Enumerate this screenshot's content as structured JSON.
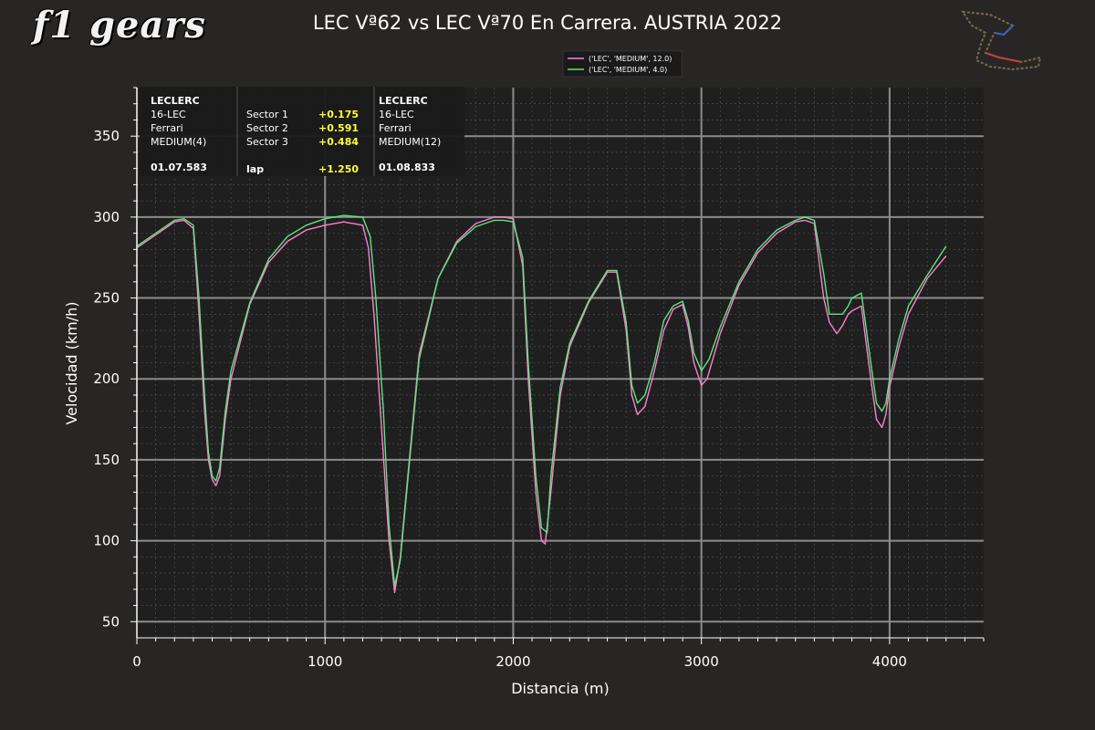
{
  "logo_text": "f1 gears",
  "chart_data": {
    "type": "line",
    "title": "LEC Vª62 vs LEC Vª70 En Carrera. AUSTRIA 2022",
    "xlabel": "Distancia (m)",
    "ylabel": "Velocidad (km/h)",
    "xlim": [
      0,
      4500
    ],
    "ylim": [
      40,
      380
    ],
    "xticks": [
      0,
      1000,
      2000,
      3000,
      4000
    ],
    "yticks": [
      50,
      100,
      150,
      200,
      250,
      300,
      350
    ],
    "grid": true,
    "legend_position": "top-center",
    "series": [
      {
        "name": "('LEC', 'MEDIUM', 12.0)",
        "color": "#ff7fd0",
        "x": [
          0,
          100,
          200,
          250,
          300,
          330,
          360,
          380,
          400,
          420,
          440,
          470,
          500,
          600,
          700,
          800,
          900,
          1000,
          1100,
          1200,
          1230,
          1260,
          1300,
          1340,
          1370,
          1400,
          1500,
          1600,
          1700,
          1800,
          1900,
          1950,
          2000,
          2050,
          2080,
          2120,
          2150,
          2170,
          2200,
          2250,
          2300,
          2400,
          2500,
          2550,
          2600,
          2630,
          2660,
          2700,
          2750,
          2800,
          2850,
          2900,
          2930,
          2960,
          3000,
          3030,
          3100,
          3200,
          3300,
          3400,
          3500,
          3550,
          3600,
          3650,
          3680,
          3720,
          3750,
          3780,
          3800,
          3850,
          3900,
          3930,
          3960,
          3980,
          4000,
          4050,
          4100,
          4200,
          4300
        ],
        "values": [
          281,
          289,
          297,
          298,
          293,
          240,
          180,
          150,
          138,
          134,
          140,
          175,
          200,
          246,
          272,
          285,
          292,
          295,
          297,
          295,
          281,
          240,
          170,
          100,
          68,
          90,
          215,
          262,
          285,
          296,
          300,
          300,
          299,
          270,
          200,
          130,
          100,
          98,
          130,
          190,
          220,
          247,
          266,
          266,
          230,
          190,
          178,
          183,
          205,
          230,
          243,
          246,
          232,
          210,
          196,
          200,
          228,
          258,
          278,
          290,
          297,
          298,
          296,
          250,
          235,
          228,
          233,
          240,
          242,
          245,
          200,
          175,
          170,
          178,
          195,
          220,
          240,
          262,
          276
        ]
      },
      {
        "name": "('LEC', 'MEDIUM', 4.0)",
        "color": "#5ce67e",
        "x": [
          0,
          100,
          200,
          250,
          300,
          330,
          360,
          380,
          400,
          420,
          440,
          470,
          500,
          600,
          700,
          800,
          900,
          1000,
          1100,
          1200,
          1240,
          1270,
          1310,
          1340,
          1370,
          1400,
          1500,
          1600,
          1700,
          1800,
          1900,
          1950,
          2000,
          2050,
          2080,
          2120,
          2150,
          2180,
          2200,
          2250,
          2300,
          2400,
          2500,
          2550,
          2600,
          2630,
          2660,
          2700,
          2750,
          2800,
          2850,
          2900,
          2930,
          2960,
          3000,
          3040,
          3100,
          3200,
          3300,
          3400,
          3500,
          3550,
          3600,
          3650,
          3680,
          3720,
          3750,
          3780,
          3800,
          3850,
          3900,
          3930,
          3960,
          3980,
          4000,
          4050,
          4100,
          4200,
          4300
        ],
        "values": [
          282,
          290,
          298,
          299,
          295,
          250,
          190,
          155,
          140,
          137,
          145,
          180,
          205,
          247,
          274,
          288,
          295,
          299,
          301,
          300,
          288,
          250,
          180,
          110,
          72,
          88,
          212,
          262,
          284,
          294,
          298,
          298,
          297,
          275,
          210,
          140,
          108,
          105,
          140,
          195,
          222,
          248,
          267,
          267,
          235,
          196,
          185,
          190,
          210,
          236,
          245,
          248,
          236,
          216,
          205,
          212,
          232,
          260,
          280,
          292,
          298,
          300,
          298,
          265,
          240,
          240,
          240,
          245,
          250,
          253,
          210,
          185,
          180,
          185,
          200,
          225,
          245,
          264,
          282
        ]
      }
    ]
  },
  "info_box": {
    "left": {
      "name": "LECLERC",
      "driver_code": "16-LEC",
      "team": "Ferrari",
      "tyre": "MEDIUM(4)",
      "lap_time": "01.07.583"
    },
    "sectors": [
      {
        "label": "Sector 1",
        "delta": "+0.175"
      },
      {
        "label": "Sector 2",
        "delta": "+0.591"
      },
      {
        "label": "Sector 3",
        "delta": "+0.484"
      }
    ],
    "lap": {
      "label": "lap",
      "delta": "+1.250"
    },
    "right": {
      "name": "LECLERC",
      "driver_code": "16-LEC",
      "team": "Ferrari",
      "tyre": "MEDIUM(12)",
      "lap_time": "01.08.833"
    }
  },
  "colors": {
    "background": "#282624",
    "plot_bg": "#1f1f1f",
    "grid": "#8c8c8c",
    "delta": "#ffff33"
  }
}
